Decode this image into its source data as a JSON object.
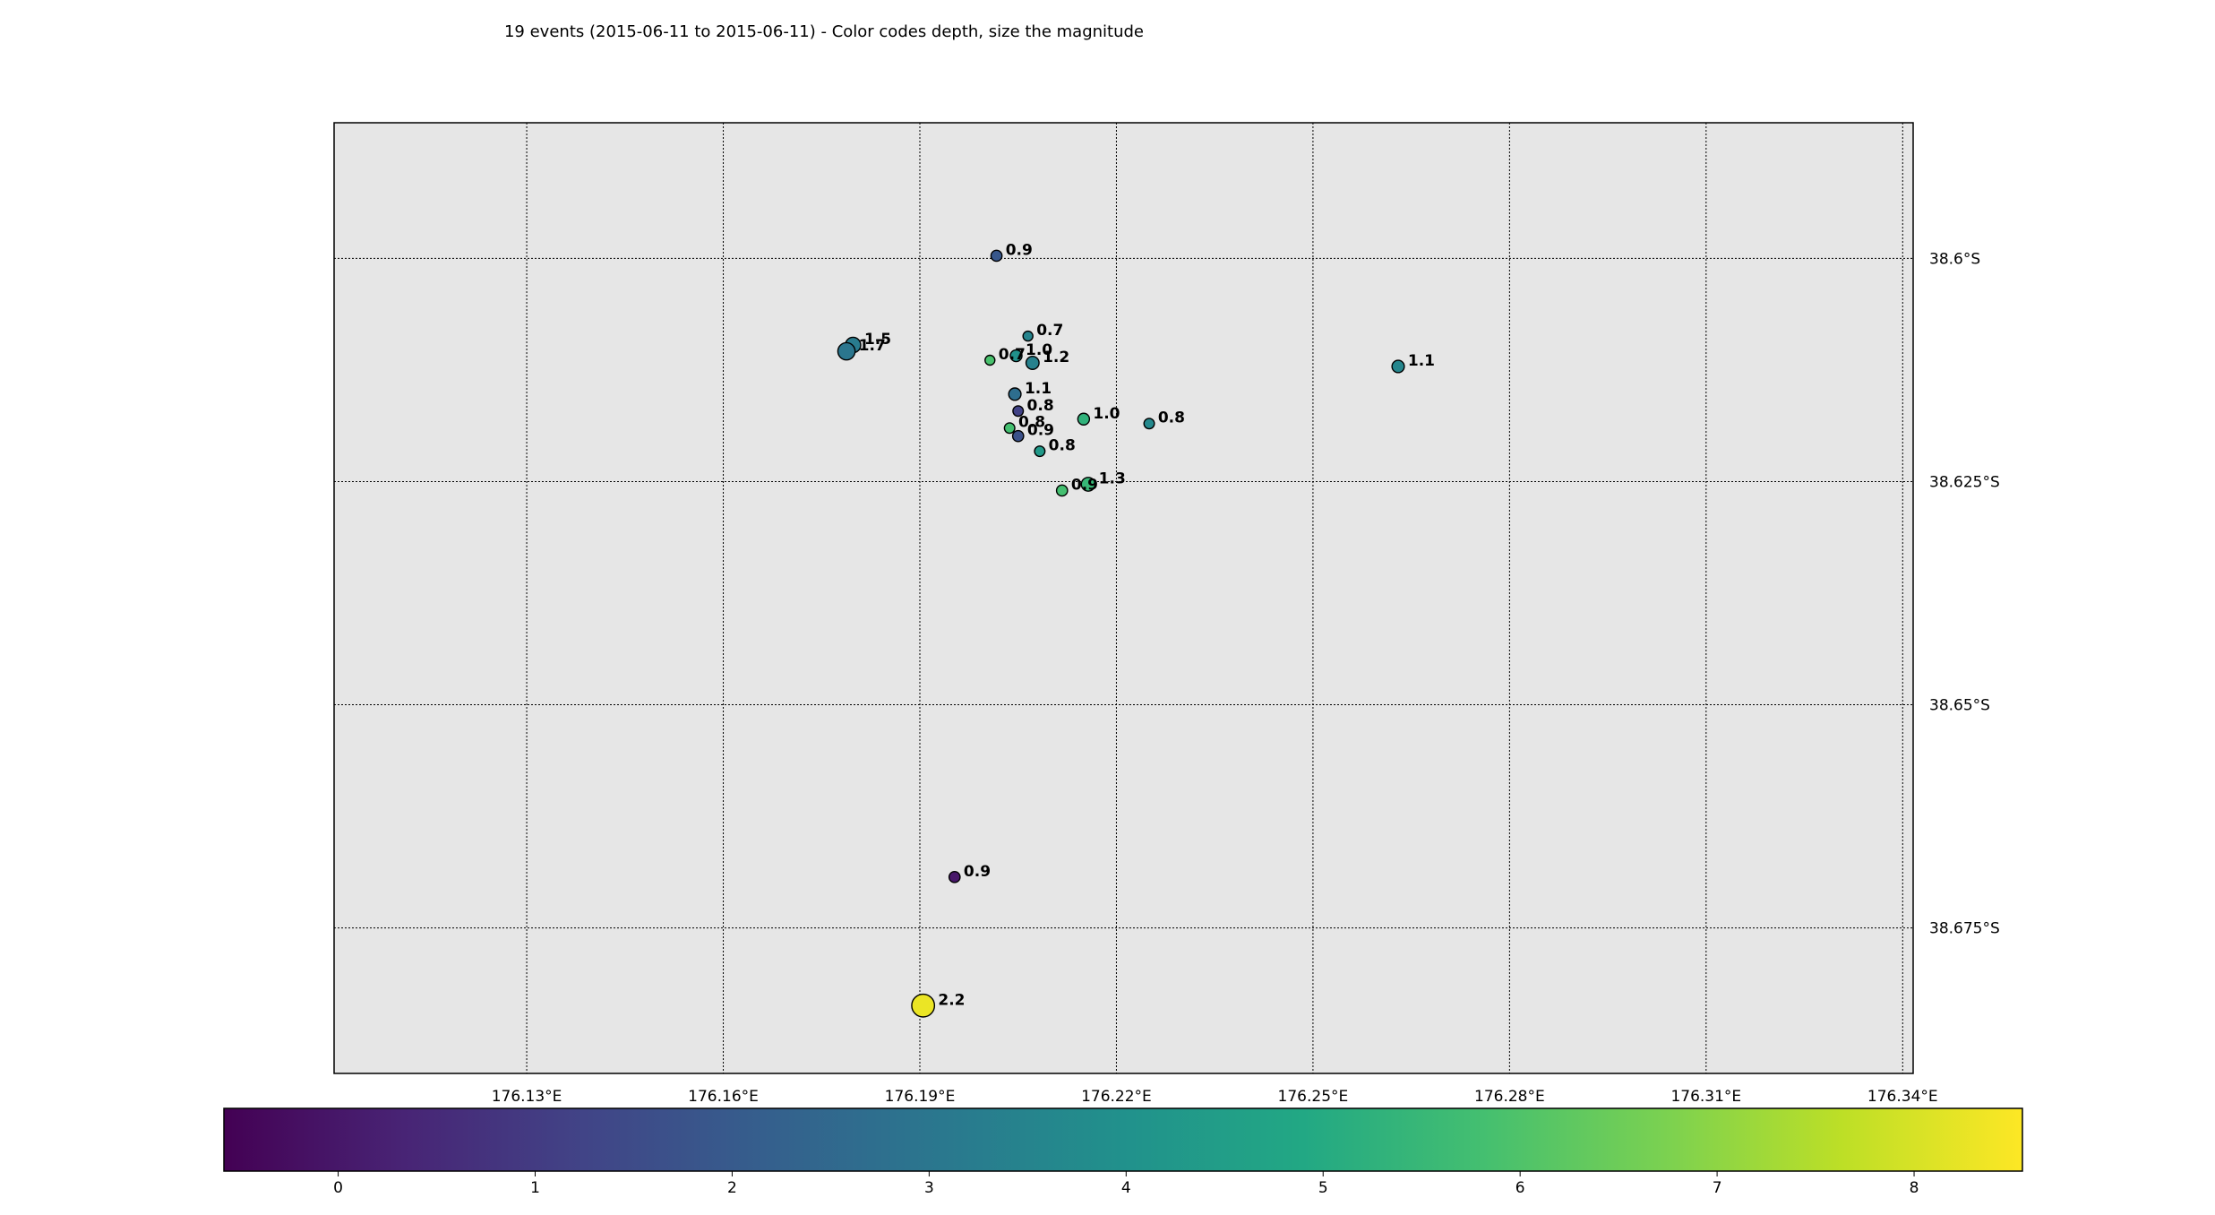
{
  "title": "19 events (2015-06-11 to 2015-06-11) - Color codes depth, size the magnitude",
  "chart_data": {
    "type": "scatter",
    "title": "19 events (2015-06-11 to 2015-06-11) - Color codes depth, size the magnitude",
    "x_ticks": [
      {
        "value": 176.13,
        "label": "176.13°E"
      },
      {
        "value": 176.16,
        "label": "176.16°E"
      },
      {
        "value": 176.19,
        "label": "176.19°E"
      },
      {
        "value": 176.22,
        "label": "176.22°E"
      },
      {
        "value": 176.25,
        "label": "176.25°E"
      },
      {
        "value": 176.28,
        "label": "176.28°E"
      },
      {
        "value": 176.31,
        "label": "176.31°E"
      },
      {
        "value": 176.34,
        "label": "176.34°E"
      }
    ],
    "y_ticks": [
      {
        "value": -38.6,
        "label": "38.6°S"
      },
      {
        "value": -38.625,
        "label": "38.625°S"
      },
      {
        "value": -38.65,
        "label": "38.65°S"
      },
      {
        "value": -38.675,
        "label": "38.675°S"
      }
    ],
    "xlim": [
      176.1006,
      176.3416
    ],
    "ylim": [
      -38.6913,
      -38.5848
    ],
    "grid": true,
    "colorbar": {
      "range": [
        -0.58,
        8.55
      ],
      "ticks": [
        0,
        1,
        2,
        3,
        4,
        5,
        6,
        7,
        8
      ],
      "colormap": "viridis",
      "quantity": "depth"
    },
    "events": [
      {
        "lon": 176.2017,
        "lat": -38.5997,
        "mag": "0.9",
        "depth": 1.9
      },
      {
        "lon": 176.2065,
        "lat": -38.6087,
        "mag": "0.7",
        "depth": 3.5
      },
      {
        "lon": 176.1798,
        "lat": -38.6097,
        "mag": "1.5",
        "depth": 3.2
      },
      {
        "lon": 176.1788,
        "lat": -38.6104,
        "mag": "1.7",
        "depth": 3.0
      },
      {
        "lon": 176.2007,
        "lat": -38.6114,
        "mag": "0.7",
        "depth": 5.9
      },
      {
        "lon": 176.2047,
        "lat": -38.6109,
        "mag": "1.0",
        "depth": 4.0
      },
      {
        "lon": 176.2072,
        "lat": -38.6117,
        "mag": "1.2",
        "depth": 3.4
      },
      {
        "lon": 176.263,
        "lat": -38.6121,
        "mag": "1.1",
        "depth": 3.6
      },
      {
        "lon": 176.2045,
        "lat": -38.6152,
        "mag": "1.1",
        "depth": 2.7
      },
      {
        "lon": 176.205,
        "lat": -38.6171,
        "mag": "0.8",
        "depth": 1.2
      },
      {
        "lon": 176.215,
        "lat": -38.618,
        "mag": "1.0",
        "depth": 5.3
      },
      {
        "lon": 176.225,
        "lat": -38.6185,
        "mag": "0.8",
        "depth": 3.7
      },
      {
        "lon": 176.2037,
        "lat": -38.619,
        "mag": "0.8",
        "depth": 5.8
      },
      {
        "lon": 176.205,
        "lat": -38.6199,
        "mag": "0.9",
        "depth": 1.7
      },
      {
        "lon": 176.2083,
        "lat": -38.6216,
        "mag": "0.8",
        "depth": 4.3
      },
      {
        "lon": 176.2157,
        "lat": -38.6253,
        "mag": "1.3",
        "depth": 5.5
      },
      {
        "lon": 176.2117,
        "lat": -38.626,
        "mag": "0.9",
        "depth": 5.8
      },
      {
        "lon": 176.1953,
        "lat": -38.6693,
        "mag": "0.9",
        "depth": 0.0
      },
      {
        "lon": 176.1905,
        "lat": -38.6837,
        "mag": "2.2",
        "depth": 8.3
      }
    ]
  }
}
